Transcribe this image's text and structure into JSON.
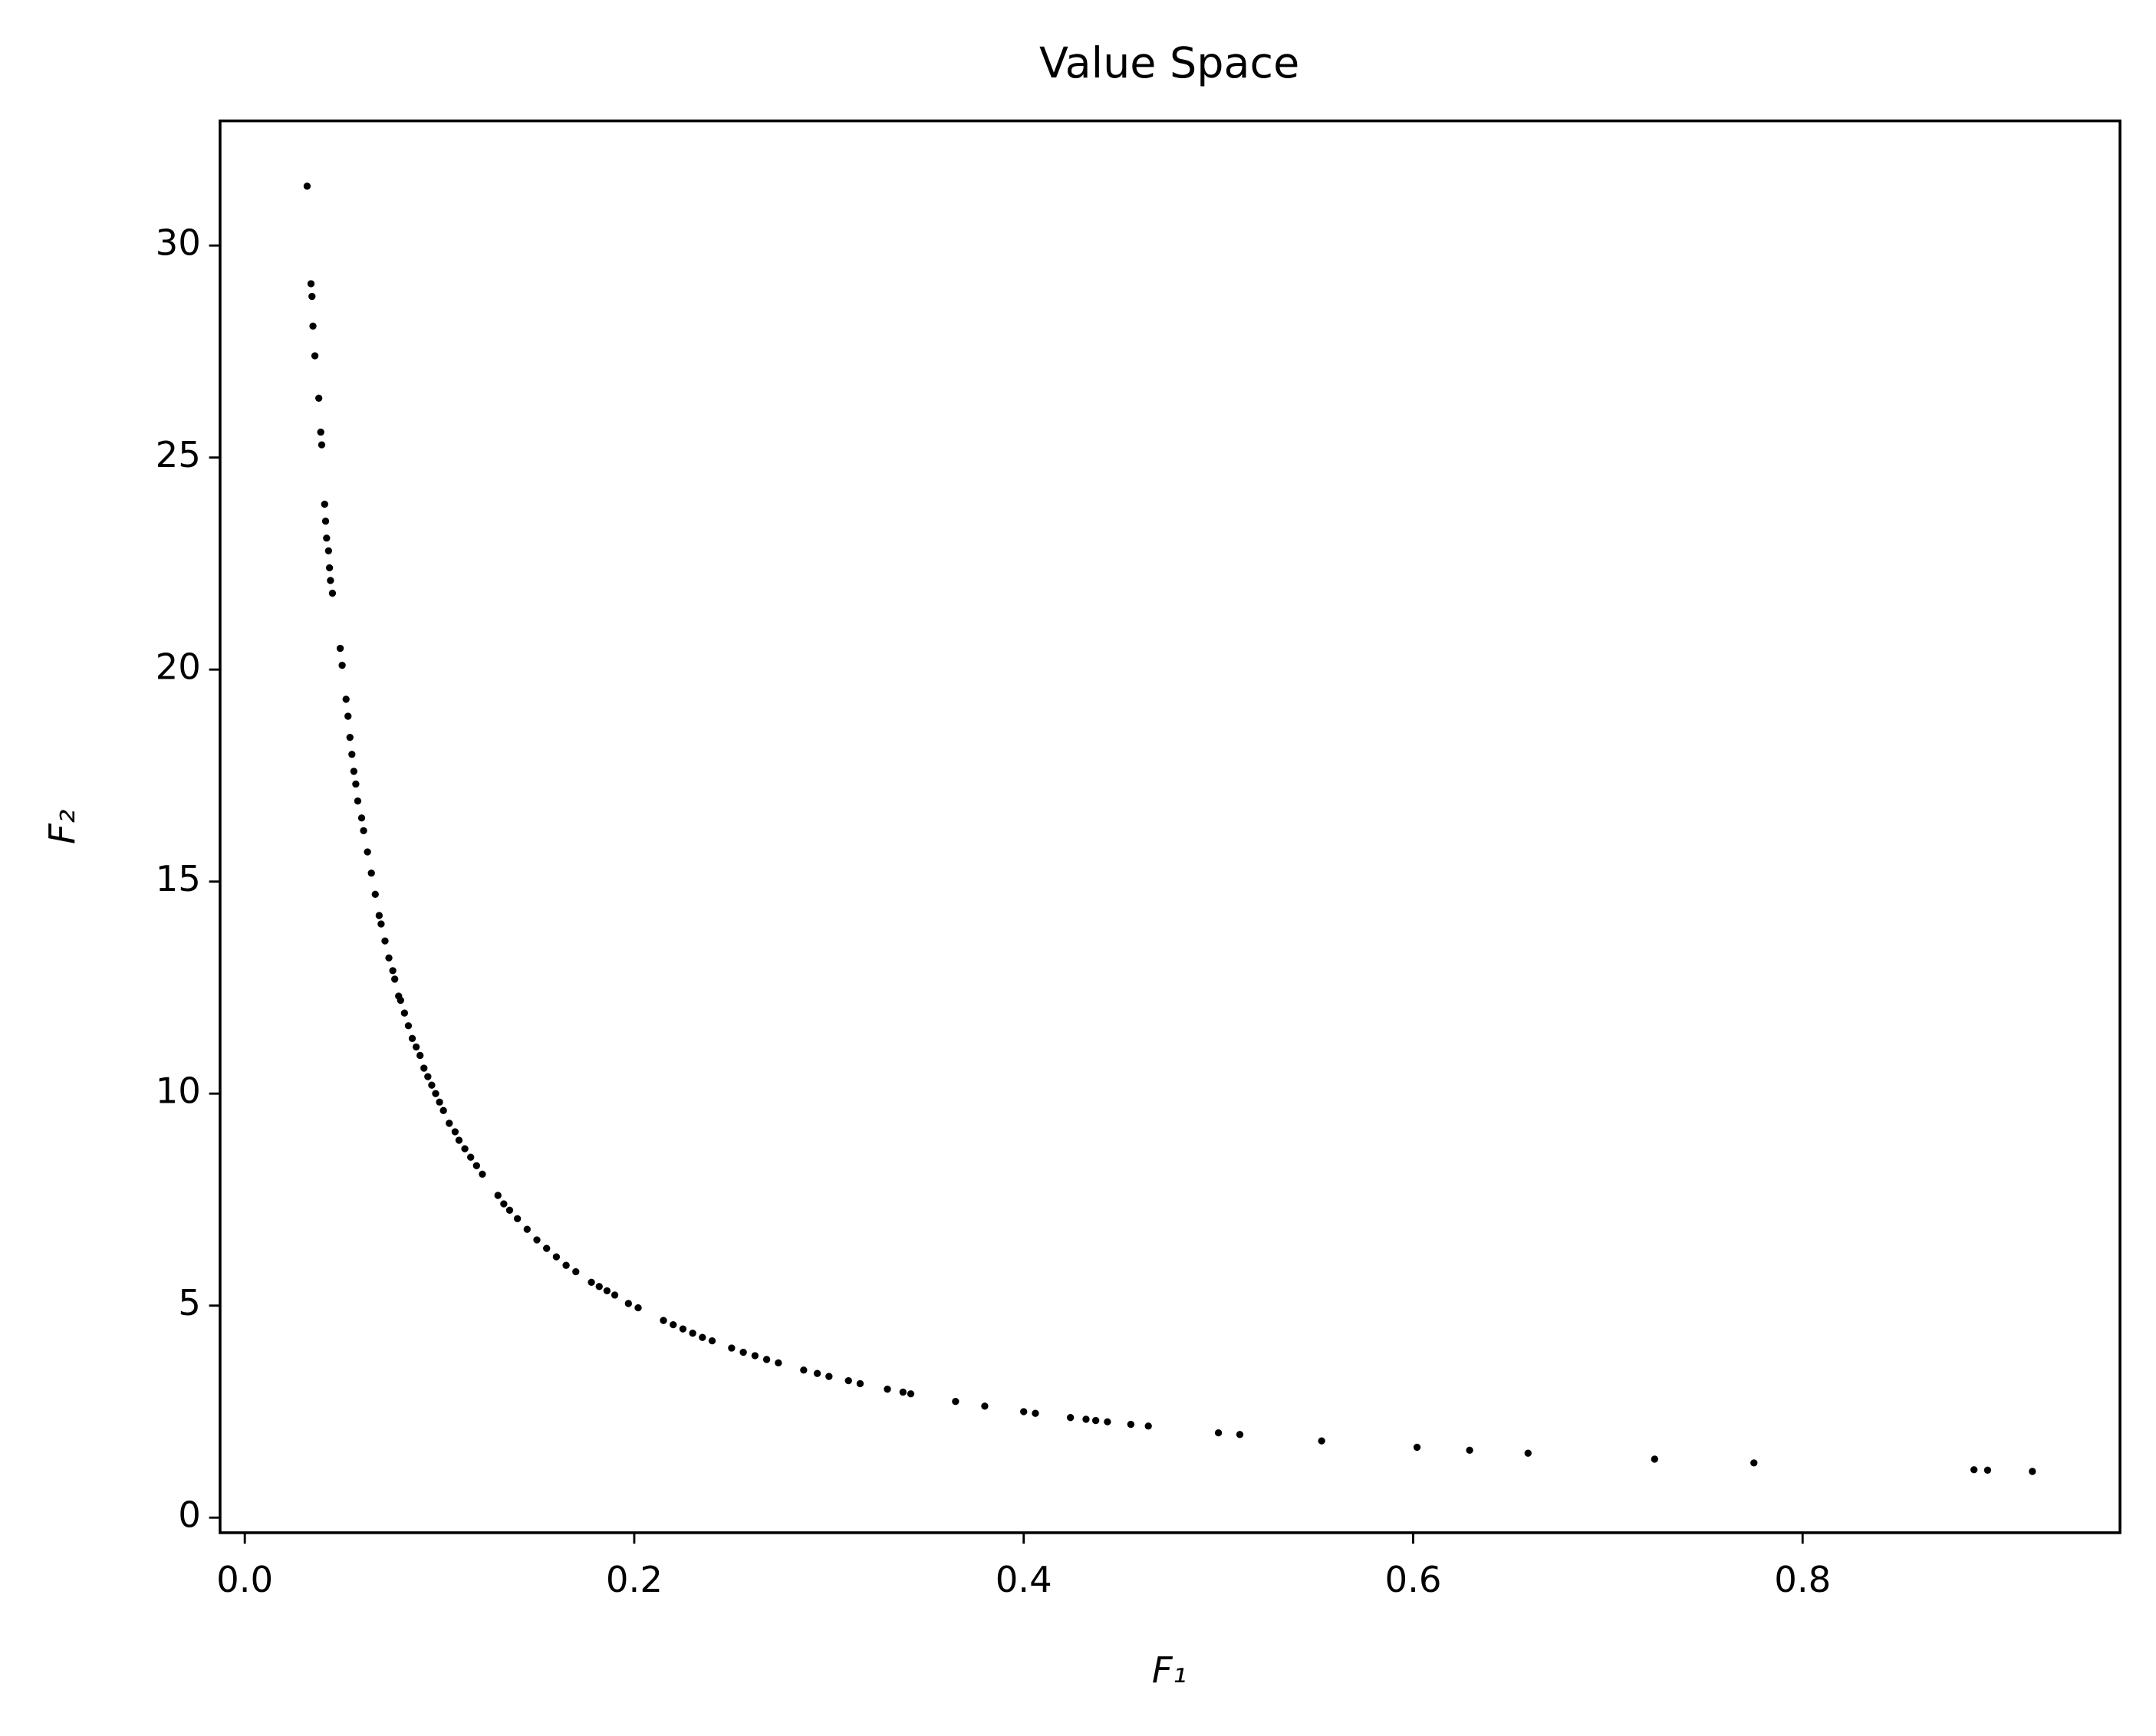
{
  "chart_data": {
    "type": "scatter",
    "title": "Value Space",
    "xlabel": "F₁",
    "ylabel": "F₂",
    "x": [
      0.032,
      0.034,
      0.0345,
      0.035,
      0.036,
      0.038,
      0.039,
      0.0395,
      0.041,
      0.0415,
      0.042,
      0.043,
      0.0435,
      0.044,
      0.045,
      0.049,
      0.05,
      0.052,
      0.053,
      0.054,
      0.055,
      0.056,
      0.057,
      0.058,
      0.06,
      0.061,
      0.063,
      0.065,
      0.067,
      0.069,
      0.07,
      0.072,
      0.074,
      0.076,
      0.077,
      0.079,
      0.08,
      0.082,
      0.084,
      0.086,
      0.088,
      0.09,
      0.092,
      0.094,
      0.096,
      0.098,
      0.1,
      0.102,
      0.105,
      0.108,
      0.11,
      0.113,
      0.116,
      0.119,
      0.122,
      0.13,
      0.133,
      0.136,
      0.14,
      0.145,
      0.15,
      0.155,
      0.16,
      0.165,
      0.17,
      0.178,
      0.182,
      0.186,
      0.19,
      0.197,
      0.202,
      0.215,
      0.22,
      0.225,
      0.23,
      0.235,
      0.24,
      0.25,
      0.256,
      0.262,
      0.268,
      0.274,
      0.287,
      0.294,
      0.3,
      0.31,
      0.316,
      0.33,
      0.338,
      0.342,
      0.365,
      0.38,
      0.4,
      0.406,
      0.424,
      0.432,
      0.437,
      0.443,
      0.455,
      0.464,
      0.5,
      0.511,
      0.553,
      0.602,
      0.629,
      0.659,
      0.724,
      0.775,
      0.888,
      0.895,
      0.918
    ],
    "series": [
      {
        "color": "#000000",
        "values": [
          31.4,
          29.1,
          28.8,
          28.1,
          27.4,
          26.4,
          25.6,
          25.3,
          23.9,
          23.5,
          23.1,
          22.8,
          22.4,
          22.1,
          21.8,
          20.5,
          20.1,
          19.3,
          18.9,
          18.4,
          18.0,
          17.6,
          17.3,
          16.9,
          16.5,
          16.2,
          15.7,
          15.2,
          14.7,
          14.2,
          14.0,
          13.6,
          13.2,
          12.9,
          12.7,
          12.3,
          12.2,
          11.9,
          11.6,
          11.3,
          11.1,
          10.9,
          10.6,
          10.4,
          10.2,
          10.0,
          9.8,
          9.6,
          9.3,
          9.1,
          8.9,
          8.7,
          8.5,
          8.3,
          8.1,
          7.6,
          7.4,
          7.25,
          7.05,
          6.8,
          6.55,
          6.35,
          6.15,
          5.95,
          5.8,
          5.55,
          5.45,
          5.35,
          5.25,
          5.05,
          4.95,
          4.65,
          4.55,
          4.45,
          4.35,
          4.25,
          4.17,
          4.0,
          3.9,
          3.82,
          3.73,
          3.65,
          3.48,
          3.4,
          3.33,
          3.23,
          3.16,
          3.03,
          2.96,
          2.92,
          2.74,
          2.63,
          2.5,
          2.46,
          2.36,
          2.32,
          2.29,
          2.26,
          2.2,
          2.16,
          2.0,
          1.96,
          1.81,
          1.66,
          1.59,
          1.52,
          1.38,
          1.29,
          1.13,
          1.12,
          1.09
        ]
      }
    ],
    "xlim": [
      -0.0127,
      0.963
    ],
    "ylim": [
      -0.356,
      32.94
    ],
    "xticks": [
      {
        "value": 0,
        "label": "0.0"
      },
      0.2,
      0.4,
      0.6,
      0.8
    ],
    "yticks": [
      0,
      5,
      10,
      15,
      20,
      25,
      30
    ]
  }
}
